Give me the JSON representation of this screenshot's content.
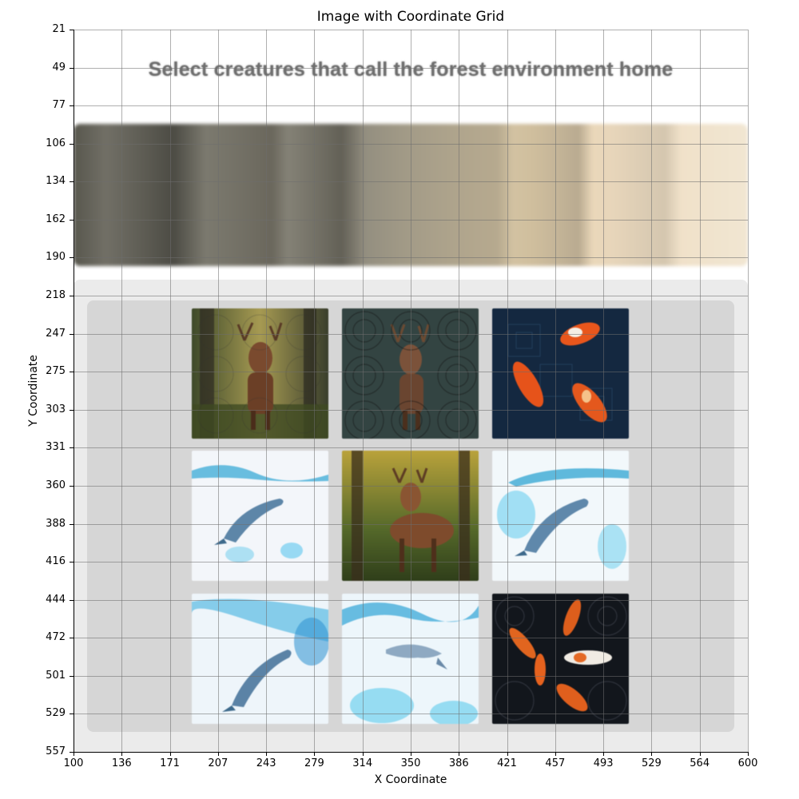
{
  "figure": {
    "title": "Image with Coordinate Grid",
    "xlabel": "X Coordinate",
    "ylabel": "Y Coordinate",
    "x_ticks": [
      "100",
      "136",
      "171",
      "207",
      "243",
      "279",
      "314",
      "350",
      "386",
      "421",
      "457",
      "493",
      "529",
      "564",
      "600"
    ],
    "y_ticks": [
      "21",
      "49",
      "77",
      "106",
      "134",
      "162",
      "190",
      "218",
      "247",
      "275",
      "303",
      "331",
      "360",
      "388",
      "416",
      "444",
      "472",
      "501",
      "529",
      "557"
    ]
  },
  "captcha": {
    "prompt": "Select creatures that call the forest environment home",
    "banner_scene": "misty-forest",
    "tiles": [
      {
        "subject": "deer-forest-icon",
        "row": 1,
        "col": 1
      },
      {
        "subject": "deer-forest-icon",
        "row": 1,
        "col": 2
      },
      {
        "subject": "koi-fish-icon",
        "row": 1,
        "col": 3
      },
      {
        "subject": "dolphin-icon",
        "row": 2,
        "col": 1
      },
      {
        "subject": "deer-forest-icon",
        "row": 2,
        "col": 2
      },
      {
        "subject": "dolphin-icon",
        "row": 2,
        "col": 3
      },
      {
        "subject": "dolphin-icon",
        "row": 3,
        "col": 1
      },
      {
        "subject": "dolphin-icon",
        "row": 3,
        "col": 2
      },
      {
        "subject": "koi-fish-icon",
        "row": 3,
        "col": 3
      }
    ]
  },
  "colors": {
    "prompt_text": "#6f6f6f",
    "panel_bg": "#ebebeb",
    "inner_panel_bg": "#d6d6d6",
    "grid_line": "#8a8a8a"
  }
}
